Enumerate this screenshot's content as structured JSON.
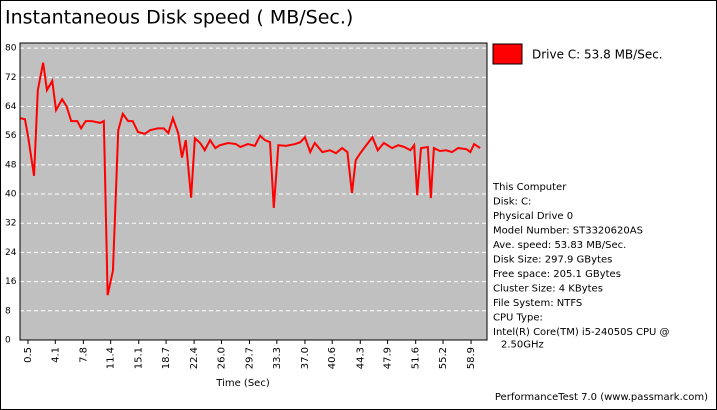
{
  "chart_data": {
    "type": "line",
    "title": "Instantaneous Disk speed ( MB/Sec.)",
    "x_label": "Time (Sec)",
    "x": [
      -0.5,
      0.1,
      0.5,
      1.3,
      1.8,
      2.5,
      3.0,
      3.7,
      4.2,
      5.0,
      5.6,
      6.2,
      7.0,
      7.5,
      8.1,
      8.9,
      10.0,
      10.5,
      11.0,
      11.7,
      12.4,
      13.0,
      13.7,
      14.3,
      15.0,
      15.9,
      16.6,
      17.6,
      18.4,
      19.0,
      19.6,
      20.3,
      20.8,
      21.3,
      22.0,
      22.5,
      23.2,
      23.8,
      24.5,
      25.2,
      25.8,
      26.9,
      27.9,
      28.5,
      29.5,
      30.4,
      31.1,
      31.7,
      32.4,
      32.9,
      33.5,
      34.5,
      35.7,
      36.4,
      37.0,
      37.7,
      38.3,
      39.3,
      40.3,
      41.1,
      41.9,
      42.6,
      43.2,
      43.7,
      44.3,
      45.1,
      45.9,
      46.6,
      47.4,
      48.5,
      49.3,
      50.1,
      50.9,
      51.4,
      51.8,
      52.3,
      53.2,
      53.6,
      54.0,
      54.8,
      55.6,
      56.4,
      57.2,
      58.3,
      58.8,
      59.3,
      60.1
    ],
    "series": [
      {
        "name": "Drive C: 53.8 MB/Sec.",
        "color": "#ff0000",
        "values": [
          60.8,
          60.5,
          56,
          45,
          68.5,
          76,
          68.5,
          71,
          63,
          66,
          64,
          60,
          60,
          58,
          60,
          60,
          59.5,
          60,
          12.3,
          19,
          57.5,
          62,
          60,
          60,
          57,
          56.5,
          57.5,
          58,
          58,
          56.7,
          60.8,
          56.7,
          50,
          54.8,
          39,
          55.3,
          54,
          52,
          54.8,
          52.6,
          53.4,
          54,
          53.7,
          52.9,
          53.7,
          53.2,
          56,
          54.8,
          54.2,
          36.2,
          53.4,
          53.2,
          53.7,
          54.2,
          55.6,
          51.5,
          54,
          51.5,
          52,
          51.2,
          52.6,
          51.5,
          40.3,
          49.3,
          51.2,
          53.4,
          55.6,
          52,
          54,
          52.6,
          53.4,
          52.9,
          52,
          53.4,
          39.7,
          52.6,
          52.9,
          38.9,
          52.6,
          51.8,
          52,
          51.5,
          52.6,
          52.3,
          51.5,
          53.7,
          52.6
        ]
      }
    ],
    "xlim": [
      -0.55,
      61.0
    ],
    "ylim": [
      0,
      81.4
    ],
    "xticks": [
      0.5,
      4.1,
      7.8,
      11.4,
      15.1,
      18.7,
      22.4,
      {
        "value": 26,
        "label": "26.0"
      },
      29.7,
      33.3,
      {
        "value": 37,
        "label": "37.0"
      },
      40.6,
      44.3,
      47.9,
      51.6,
      55.2,
      58.9
    ],
    "yticks": [
      0,
      8,
      16,
      24,
      32,
      40,
      48,
      56,
      64,
      72,
      80
    ],
    "grid": true
  },
  "info": [
    "This Computer",
    "Disk: C:",
    "Physical Drive 0",
    "Model Number: ST3320620AS",
    "Ave. speed: 53.83 MB/Sec.",
    "Disk Size: 297.9 GBytes",
    "Free space: 205.1 GBytes",
    "Cluster Size: 4 KBytes",
    "File System: NTFS",
    "CPU Type:",
    "Intel(R) Core(TM) i5-24050S CPU @",
    "2.50GHz"
  ],
  "footer": "PerformanceTest 7.0 (www.passmark.com)"
}
